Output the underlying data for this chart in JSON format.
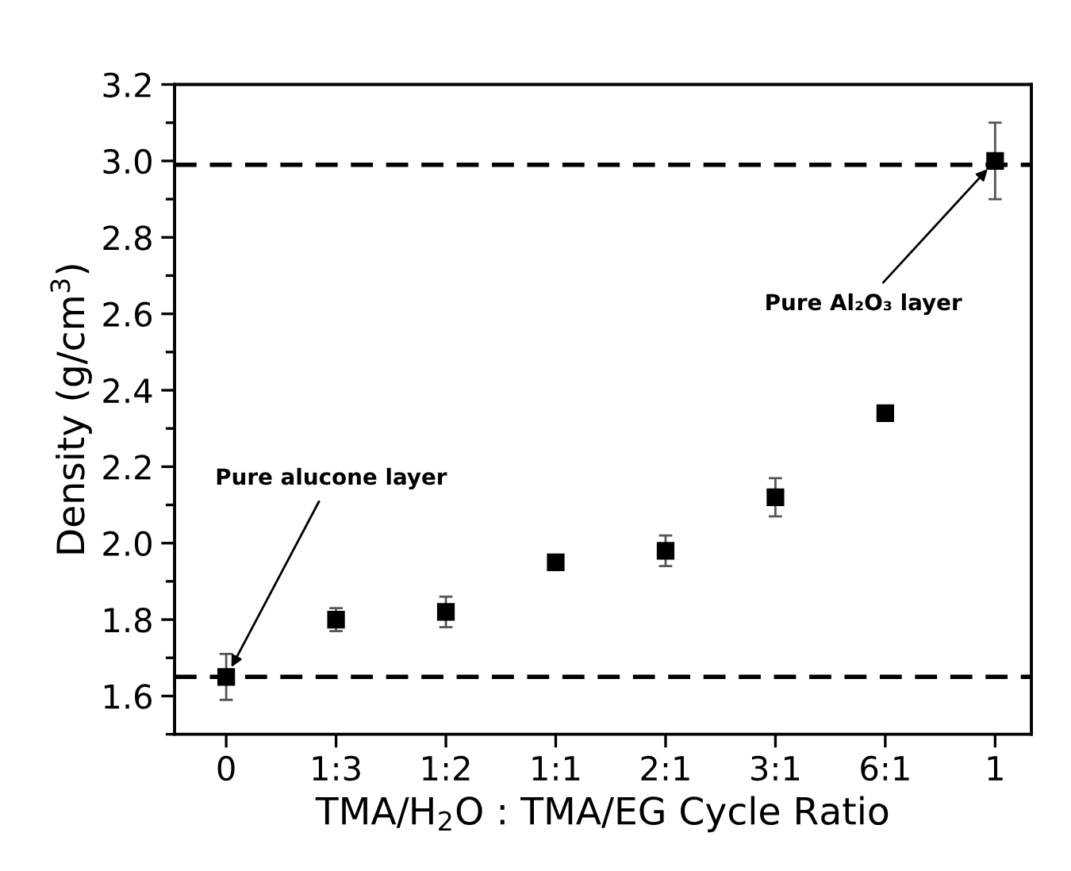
{
  "chart_data": {
    "type": "scatter",
    "xlabel": "TMA/H$_{2}$O : TMA/EG Cycle Ratio",
    "ylabel": "Density (g/cm$^{3}$)",
    "categories": [
      "0",
      "1:3",
      "1:2",
      "1:1",
      "2:1",
      "3:1",
      "6:1",
      "1"
    ],
    "values": [
      1.65,
      1.8,
      1.82,
      1.95,
      1.98,
      2.12,
      2.34,
      3.0
    ],
    "errors": [
      0.06,
      0.03,
      0.04,
      0.01,
      0.04,
      0.05,
      0.01,
      0.1
    ],
    "color": "#000000",
    "marker": "square",
    "ylim": [
      1.5,
      3.2
    ],
    "yticks": [
      1.6,
      1.8,
      {
        "value": 2,
        "label": "2.0"
      },
      2.2,
      2.4,
      2.6,
      2.8,
      {
        "value": 3,
        "label": "3.0"
      },
      3.2
    ],
    "ref_lines": [
      {
        "axis": "y",
        "value": 2.99,
        "color": "#000000",
        "line_style": "dashed"
      },
      {
        "axis": "y",
        "value": 1.65,
        "color": "#000000",
        "line_style": "dashed"
      }
    ],
    "annotations": [
      {
        "text": "Pure alucone layer",
        "x": "0",
        "y": 1.65
      },
      {
        "text": "Pure Al₂O₃ layer",
        "x": "1",
        "y": 3.0
      }
    ],
    "grid": false,
    "legend": false
  }
}
